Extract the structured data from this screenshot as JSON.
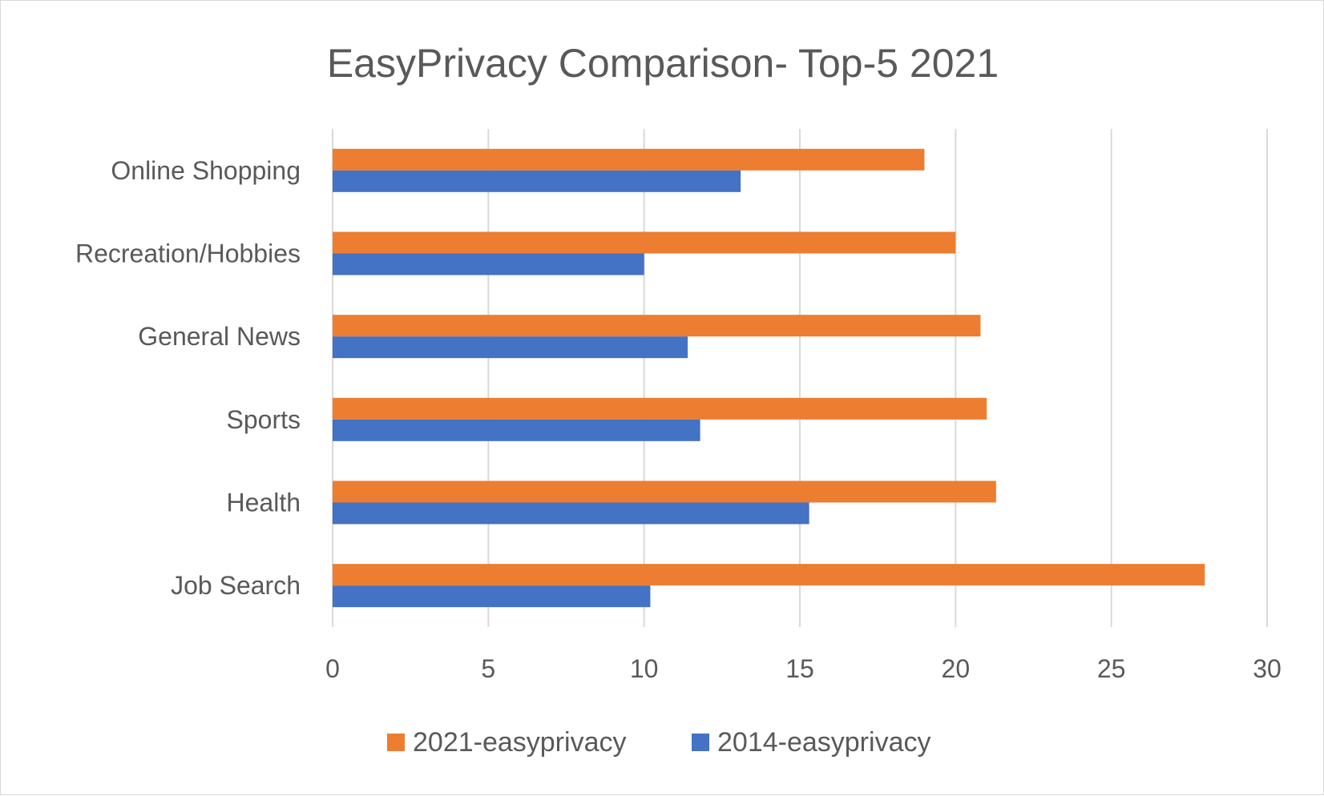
{
  "chart_data": {
    "type": "bar",
    "orientation": "horizontal",
    "title": "EasyPrivacy Comparison- Top-5 2021",
    "categories": [
      "Online Shopping",
      "Recreation/Hobbies",
      "General News",
      "Sports",
      "Health",
      "Job Search"
    ],
    "series": [
      {
        "name": "2021-easyprivacy",
        "color": "#ED7D31",
        "values": [
          19,
          20,
          20.8,
          21,
          21.3,
          28
        ]
      },
      {
        "name": "2014-easyprivacy",
        "color": "#4472C4",
        "values": [
          13.1,
          10,
          11.4,
          11.8,
          15.3,
          10.2
        ]
      }
    ],
    "xlim": [
      0,
      30
    ],
    "xticks": [
      "0",
      "5",
      "10",
      "15",
      "20",
      "25",
      "30"
    ],
    "grid": true,
    "legend_position": "bottom"
  }
}
